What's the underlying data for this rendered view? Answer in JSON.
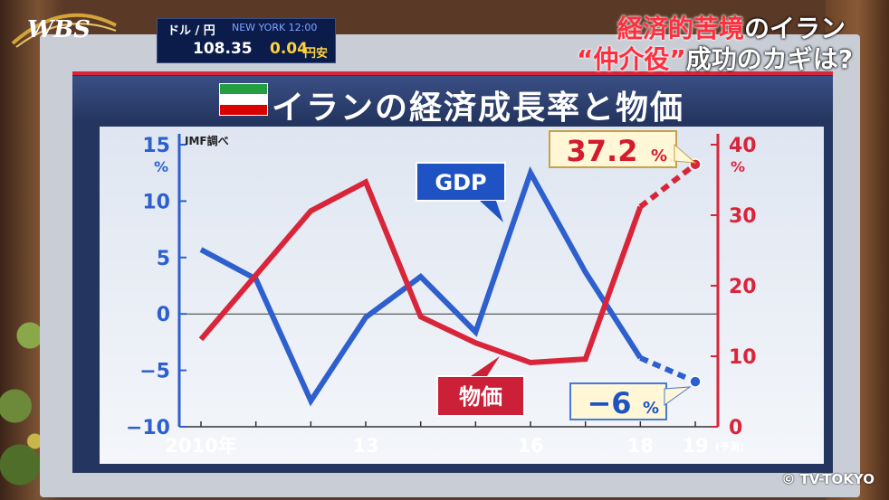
{
  "broadcast": {
    "logo": "WBS",
    "ticker": {
      "label": "ドル / 円",
      "blurred": "NEW YORK 12:00",
      "price": "108.35",
      "change": "0.04",
      "change_unit": "円安"
    },
    "headline": {
      "line1_red": "経済的苦境",
      "line1_white": "のイラン",
      "line2_red": "“仲介役”",
      "line2_white": "成功のカギは?"
    },
    "copyright": "© TV-TOKYO"
  },
  "chart_title": "イランの経済成長率と物価",
  "flag": "iran-flag",
  "colors": {
    "gdp": "#2e5fcf",
    "cpi": "#d9253a",
    "gdp_label_bg": "#1f53c4",
    "cpi_label_bg": "#cc2038"
  },
  "chart_data": {
    "type": "line",
    "source": "IMF調べ",
    "x": [
      2010,
      2011,
      2012,
      2013,
      2014,
      2015,
      2016,
      2017,
      2018,
      2019
    ],
    "x_tick_labels": [
      {
        "x": 2010,
        "label": "2010年"
      },
      {
        "x": 2013,
        "label": "13"
      },
      {
        "x": 2016,
        "label": "16"
      },
      {
        "x": 2018,
        "label": "18"
      },
      {
        "x": 2019,
        "label": "19"
      }
    ],
    "forecast_label": "(予測)",
    "left_axis": {
      "ticks": [
        15,
        10,
        5,
        0,
        -5,
        -10
      ],
      "tick_labels": [
        "15",
        "10",
        "5",
        "0",
        "−5",
        "−10"
      ],
      "unit": "%",
      "range": [
        -10,
        15
      ]
    },
    "right_axis": {
      "ticks": [
        40,
        30,
        20,
        10,
        0
      ],
      "tick_labels": [
        "40",
        "30",
        "20",
        "10",
        "0"
      ],
      "unit": "%",
      "range": [
        0,
        40
      ]
    },
    "series": [
      {
        "name": "GDP",
        "axis": "left",
        "values": [
          5.7,
          3.1,
          -7.7,
          -0.3,
          3.3,
          -1.6,
          12.5,
          3.7,
          -3.9,
          -6.0
        ],
        "forecast_from": 2018
      },
      {
        "name": "物価",
        "axis": "right",
        "values": [
          12.4,
          21.5,
          30.6,
          34.7,
          15.6,
          11.9,
          9.1,
          9.6,
          31.2,
          37.2
        ],
        "forecast_from": 2018
      }
    ],
    "annotations": [
      {
        "text": "37.2",
        "unit": "%",
        "x": 2019,
        "series": "物価"
      },
      {
        "text": "−6",
        "unit": "%",
        "x": 2019,
        "series": "GDP"
      }
    ],
    "zero_line": true
  }
}
